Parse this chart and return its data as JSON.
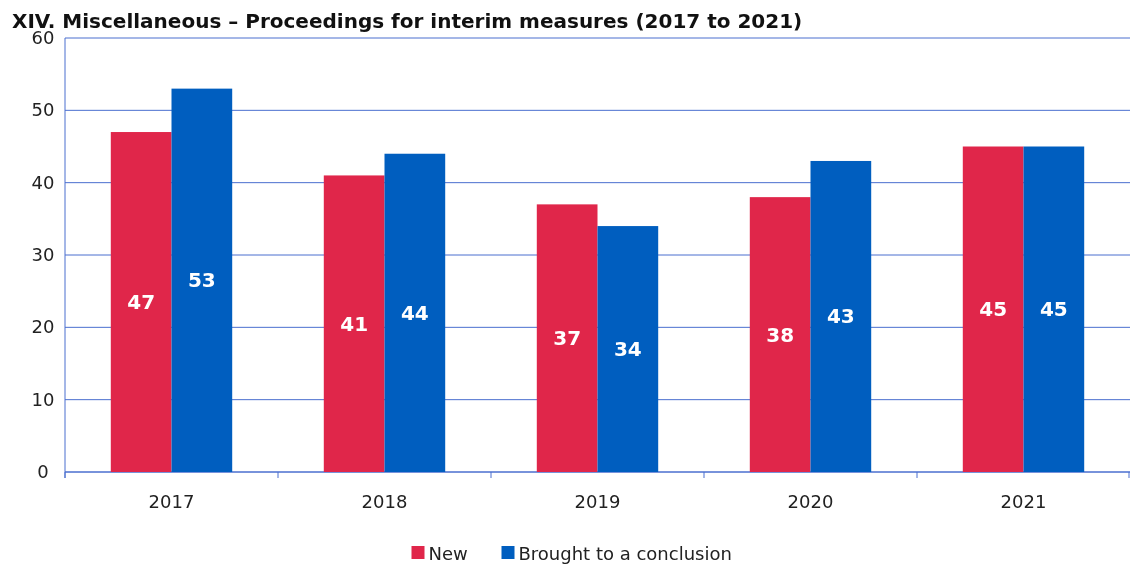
{
  "chart_data": {
    "type": "bar",
    "title": "XIV. Miscellaneous – Proceedings for interim measures (2017 to 2021)",
    "categories": [
      "2017",
      "2018",
      "2019",
      "2020",
      "2021"
    ],
    "series": [
      {
        "name": "New",
        "color": "#e0264a",
        "values": [
          47,
          41,
          37,
          38,
          45
        ]
      },
      {
        "name": "Brought to a conclusion",
        "color": "#005ebf",
        "values": [
          53,
          44,
          34,
          43,
          45
        ]
      }
    ],
    "ylim": [
      0,
      60
    ],
    "yticks": [
      0,
      10,
      20,
      30,
      40,
      50,
      60
    ],
    "grid": "y",
    "legend": "bottom",
    "data_labels": true
  }
}
